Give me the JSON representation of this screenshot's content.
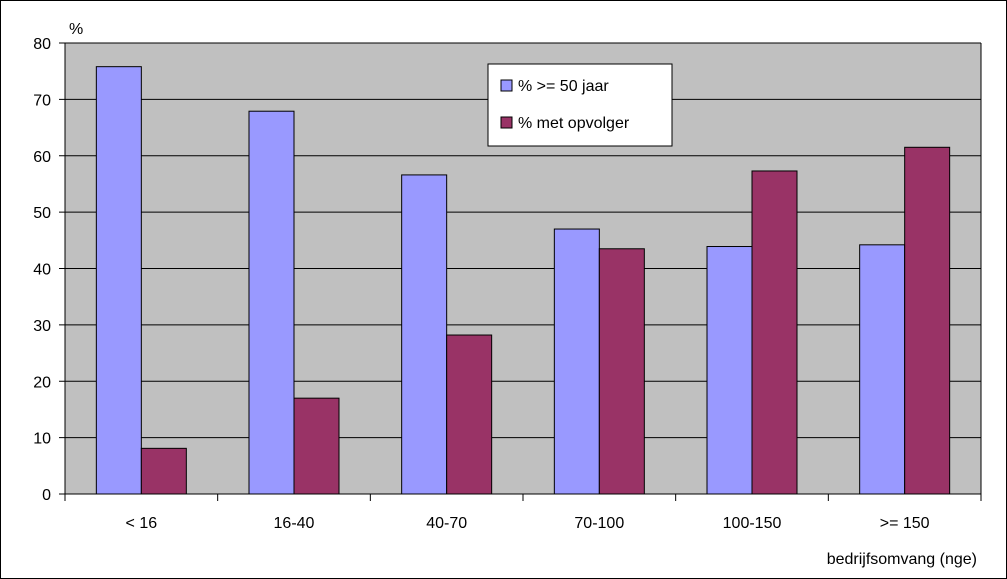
{
  "chart_data": {
    "type": "bar",
    "categories": [
      "< 16",
      "16-40",
      "40-70",
      "70-100",
      "100-150",
      ">= 150"
    ],
    "series": [
      {
        "name": "% >= 50 jaar",
        "color": "#9999ff",
        "values": [
          75.8,
          67.9,
          56.6,
          47.0,
          43.9,
          44.2
        ]
      },
      {
        "name": "% met opvolger",
        "color": "#993366",
        "values": [
          8.1,
          17.0,
          28.2,
          43.5,
          57.3,
          61.5
        ]
      }
    ],
    "ylabel": "%",
    "xlabel": "bedrijfsomvang (nge)",
    "ylim": [
      0,
      80
    ],
    "yticks": [
      0,
      10,
      20,
      30,
      40,
      50,
      60,
      70,
      80
    ],
    "grid": true,
    "legend_position": "top-center",
    "plot_background": "#c0c0c0",
    "gridline_color": "#000000"
  }
}
